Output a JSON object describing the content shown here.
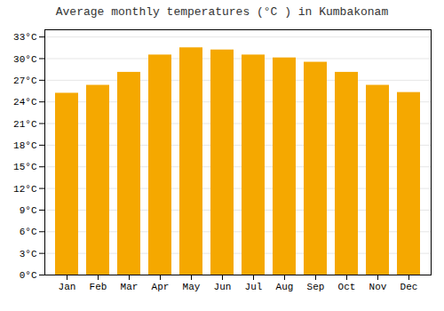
{
  "chart_data": {
    "type": "bar",
    "title": "Average monthly temperatures (°C ) in Kumbakonam",
    "categories": [
      "Jan",
      "Feb",
      "Mar",
      "Apr",
      "May",
      "Jun",
      "Jul",
      "Aug",
      "Sep",
      "Oct",
      "Nov",
      "Dec"
    ],
    "values": [
      25.2,
      26.3,
      28.1,
      30.5,
      31.5,
      31.2,
      30.5,
      30.1,
      29.5,
      28.1,
      26.3,
      25.3
    ],
    "color": "#F5A800",
    "ylim": [
      0,
      34
    ],
    "yticks": [
      {
        "value": 0,
        "label": "0°C"
      },
      {
        "value": 3,
        "label": "3°C"
      },
      {
        "value": 6,
        "label": "6°C"
      },
      {
        "value": 9,
        "label": "9°C"
      },
      {
        "value": 12,
        "label": "12°C"
      },
      {
        "value": 15,
        "label": "15°C"
      },
      {
        "value": 18,
        "label": "18°C"
      },
      {
        "value": 21,
        "label": "21°C"
      },
      {
        "value": 24,
        "label": "24°C"
      },
      {
        "value": 27,
        "label": "27°C"
      },
      {
        "value": 30,
        "label": "30°C"
      },
      {
        "value": 33,
        "label": "33°C"
      }
    ],
    "grid": true
  }
}
